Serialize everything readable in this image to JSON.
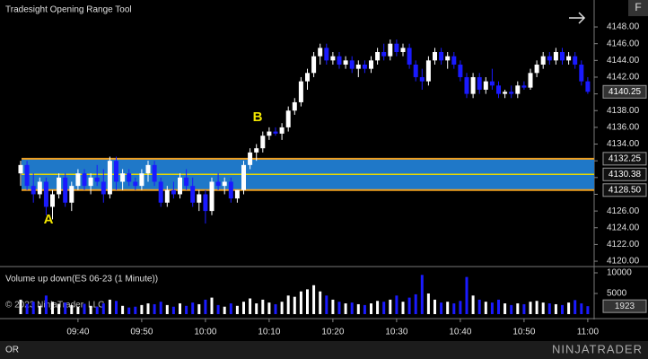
{
  "chart_data": [
    {
      "type": "candlestick",
      "title": "Tradesight Opening Range Tool",
      "annotations": [
        "A",
        "B"
      ],
      "up_color": "#ffffff",
      "down_color": "#1a1aff",
      "grid": false,
      "categories": [
        null,
        null,
        null,
        null,
        null,
        null,
        null,
        null,
        null,
        "09:40",
        null,
        null,
        null,
        null,
        null,
        null,
        null,
        null,
        null,
        "09:50",
        null,
        null,
        null,
        null,
        null,
        null,
        null,
        null,
        null,
        "10:00",
        null,
        null,
        null,
        null,
        null,
        null,
        null,
        null,
        null,
        "10:10",
        null,
        null,
        null,
        null,
        null,
        null,
        null,
        null,
        null,
        "10:20",
        null,
        null,
        null,
        null,
        null,
        null,
        null,
        null,
        null,
        "10:30",
        null,
        null,
        null,
        null,
        null,
        null,
        null,
        null,
        null,
        "10:40",
        null,
        null,
        null,
        null,
        null,
        null,
        null,
        null,
        null,
        "10:50",
        null,
        null,
        null,
        null,
        null,
        null,
        null,
        null,
        null,
        "11:00"
      ],
      "open": [
        4130.5,
        4131.5,
        4129,
        4128,
        4129.5,
        4126.5,
        4128,
        4130,
        4127,
        4129,
        4130.5,
        4129,
        4130,
        4129.5,
        4128,
        4132,
        4129.5,
        4130.5,
        4129.5,
        4129,
        4130.5,
        4131.5,
        4129.5,
        4127,
        4128.5,
        4128,
        4130,
        4129,
        4127,
        4128,
        4126,
        4129.5,
        4129,
        4129.5,
        4127.5,
        4128.5,
        4131.5,
        4133,
        4133.5,
        4135,
        4135.5,
        4135.25,
        4136,
        4138,
        4139,
        4141.5,
        4142.5,
        4144.5,
        4145.5,
        4144,
        4144.5,
        4143.5,
        4144,
        4143,
        4143.5,
        4143,
        4144,
        4145,
        4144.5,
        4146,
        4145,
        4145.5,
        4143.5,
        4142,
        4141.5,
        4144,
        4145,
        4144,
        4144.5,
        4143.5,
        4142,
        4140,
        4142,
        4140.5,
        4141.5,
        4141,
        4140,
        4140.25,
        4140,
        4141,
        4140.75,
        4142.5,
        4143.5,
        4144.5,
        4144,
        4145,
        4144,
        4144.5,
        4143.5,
        4141.5
      ],
      "high": [
        4132,
        4132,
        4130.5,
        4130,
        4130,
        4128.5,
        4130.5,
        4130.5,
        4129.5,
        4131,
        4131,
        4130.5,
        4131.5,
        4131,
        4132.5,
        4132.5,
        4131,
        4131,
        4130,
        4131,
        4132,
        4132,
        4130,
        4129,
        4129.5,
        4130.5,
        4131,
        4130,
        4128.5,
        4128.5,
        4130,
        4130.5,
        4130,
        4130,
        4128.5,
        4132,
        4133.5,
        4134,
        4135.5,
        4136,
        4136,
        4136.5,
        4138.5,
        4139.5,
        4142,
        4143,
        4145,
        4146,
        4146,
        4145,
        4145,
        4144.5,
        4144.5,
        4144,
        4144,
        4144.5,
        4145.5,
        4146,
        4146.5,
        4146.5,
        4146,
        4146,
        4144,
        4143,
        4144.5,
        4145.5,
        4145.5,
        4145,
        4145,
        4144,
        4142.5,
        4142.5,
        4142.5,
        4142,
        4143,
        4141.5,
        4140.5,
        4141,
        4141.5,
        4141.5,
        4143,
        4144,
        4145,
        4145,
        4145.5,
        4145.5,
        4145,
        4145,
        4144,
        4142
      ],
      "low": [
        4129,
        4128.5,
        4127,
        4127.5,
        4125.5,
        4125,
        4127.5,
        4126.5,
        4126,
        4128.5,
        4128.5,
        4128,
        4129,
        4127,
        4127.5,
        4128.5,
        4128.5,
        4129,
        4128.5,
        4128.5,
        4129.5,
        4129,
        4126.5,
        4126.5,
        4127.5,
        4127.5,
        4128.5,
        4126.5,
        4126,
        4124.5,
        4125.5,
        4128.5,
        4128,
        4127,
        4127,
        4128,
        4131,
        4132,
        4133,
        4134.5,
        4135,
        4134.5,
        4135.5,
        4137.5,
        4138.5,
        4140.5,
        4142,
        4143.5,
        4143.5,
        4143.5,
        4143,
        4143,
        4142.5,
        4142,
        4142.5,
        4142.5,
        4143.5,
        4144,
        4144,
        4144.5,
        4144.5,
        4143,
        4141.5,
        4140.5,
        4141,
        4143.5,
        4143.5,
        4143,
        4143,
        4141.5,
        4139.5,
        4139.5,
        4140,
        4140,
        4140.5,
        4139.5,
        4139.5,
        4139.5,
        4139.5,
        4140.5,
        4140.5,
        4142,
        4143,
        4143.5,
        4143.5,
        4143.5,
        4143.5,
        4143,
        4141,
        4140
      ],
      "close": [
        4131.5,
        4129,
        4128,
        4129.5,
        4126.5,
        4128,
        4130,
        4127,
        4129,
        4130.5,
        4129,
        4130,
        4129.5,
        4128,
        4132,
        4129.5,
        4130.5,
        4129.5,
        4129,
        4130.5,
        4131.5,
        4129.5,
        4127,
        4128.5,
        4128,
        4130,
        4129,
        4127,
        4128,
        4126,
        4129.5,
        4129,
        4129.5,
        4127.5,
        4128.5,
        4131.5,
        4133,
        4133.5,
        4135,
        4135.5,
        4135.25,
        4136,
        4138,
        4139,
        4141.5,
        4142.5,
        4144.5,
        4145.5,
        4144,
        4144.5,
        4143.5,
        4144,
        4143,
        4143.5,
        4143,
        4144,
        4145,
        4144.5,
        4146,
        4145,
        4145.5,
        4143.5,
        4142,
        4141.5,
        4144,
        4145,
        4144,
        4144.5,
        4143.5,
        4142,
        4140,
        4142,
        4140.5,
        4141.5,
        4141,
        4140,
        4140.25,
        4140,
        4141,
        4140.75,
        4142.5,
        4143.5,
        4144.5,
        4144,
        4145,
        4144,
        4144.5,
        4143.5,
        4141.5,
        4140.25
      ],
      "ylim": [
        4119.5,
        4150
      ],
      "yticks": [
        {
          "value": 4120,
          "label": "4120.00"
        },
        {
          "value": 4122,
          "label": "4122.00"
        },
        {
          "value": 4124,
          "label": "4124.00"
        },
        {
          "value": 4126,
          "label": "4126.00"
        },
        {
          "value": 4128,
          "label": "4128.00"
        },
        {
          "value": 4130,
          "label": "4130.00"
        },
        {
          "value": 4132,
          "label": "4132.00"
        },
        {
          "value": 4134,
          "label": "4134.00"
        },
        {
          "value": 4136,
          "label": "4136.00"
        },
        {
          "value": 4138,
          "label": "4138.00"
        },
        {
          "value": 4140,
          "label": "4140.00"
        },
        {
          "value": 4142,
          "label": "4142.00"
        },
        {
          "value": 4144,
          "label": "4144.00"
        },
        {
          "value": 4146,
          "label": "4146.00"
        },
        {
          "value": 4148,
          "label": "4148.00"
        }
      ],
      "opening_range": {
        "high": 4132.25,
        "mid": 4130.38,
        "low": {
          "value": 4128.5,
          "label": "4128.50"
        },
        "fill_color": "#1f78c8",
        "edge_color": "#f0a020",
        "mid_color": "#e8d800"
      }
    },
    {
      "type": "bar",
      "title": "Volume up down(ES 06-23 (1 Minute))",
      "up_color": "#ffffff",
      "down_color": "#1a1aff",
      "values": [
        3500,
        2500,
        3000,
        2000,
        4500,
        3000,
        2500,
        2800,
        2200,
        1800,
        2500,
        2000,
        1800,
        2600,
        3500,
        3200,
        2000,
        1600,
        1800,
        2200,
        2600,
        2400,
        3000,
        2200,
        1800,
        2600,
        2000,
        2800,
        2400,
        3500,
        4000,
        2200,
        1800,
        2600,
        2000,
        3000,
        3800,
        2600,
        3500,
        2800,
        2400,
        3000,
        4500,
        4200,
        5500,
        6000,
        7000,
        5500,
        4500,
        3500,
        3000,
        2600,
        2800,
        2400,
        2200,
        2600,
        3200,
        3000,
        3500,
        4500,
        3000,
        4000,
        4800,
        9500,
        5000,
        3500,
        2800,
        3000,
        2600,
        3200,
        9000,
        4500,
        3500,
        3000,
        2800,
        3500,
        2600,
        2200,
        2600,
        2400,
        3000,
        3200,
        2800,
        2600,
        2400,
        2200,
        2800,
        3400,
        2600,
        1923
      ],
      "ylim": [
        0,
        11000
      ],
      "yticks": [
        5000,
        10000
      ]
    }
  ],
  "footer": {
    "copyright": "© 2023 NinjaTrader, LLC",
    "tab": "OR",
    "logo": "NINJATRADER",
    "button": "F"
  }
}
